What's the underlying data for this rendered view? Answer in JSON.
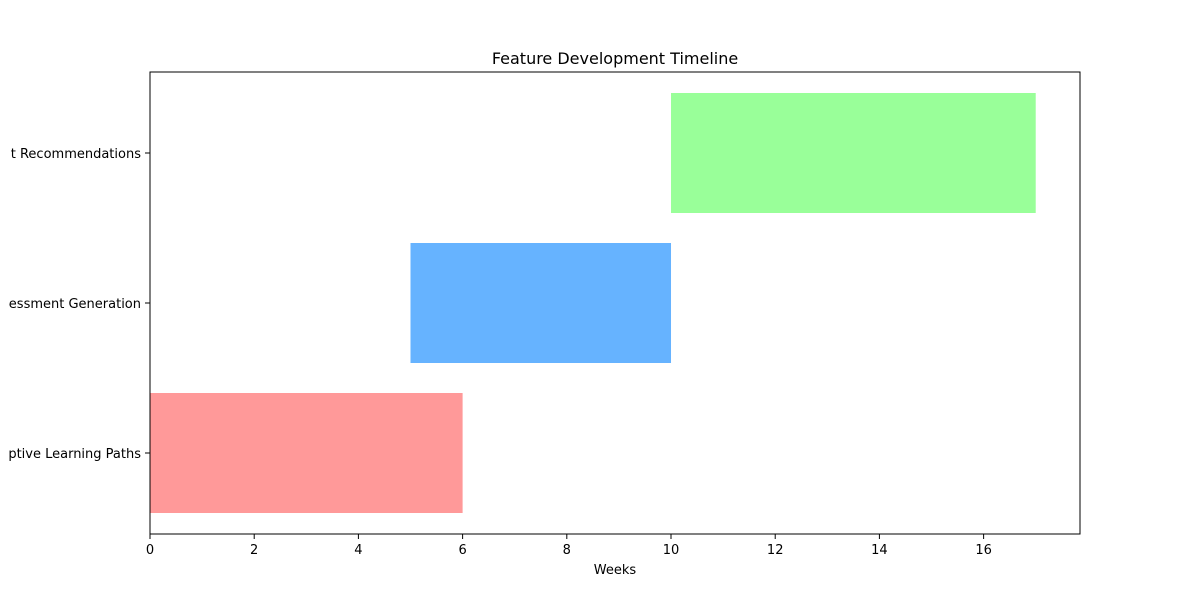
{
  "chart_data": {
    "type": "bar",
    "orientation": "horizontal",
    "title": "Feature Development Timeline",
    "xlabel": "Weeks",
    "ylabel": "",
    "xlim": [
      0,
      17.85
    ],
    "xticks": [
      0,
      2,
      4,
      6,
      8,
      10,
      12,
      14,
      16
    ],
    "grid": false,
    "categories": [
      "Adaptive Learning Paths",
      "Assessment Generation",
      "Content Recommendations"
    ],
    "category_labels_visible": [
      "ptive Learning Paths",
      "essment Generation",
      "t Recommendations"
    ],
    "bars": [
      {
        "category": "Adaptive Learning Paths",
        "start": 0,
        "end": 6,
        "color": "#ff9999"
      },
      {
        "category": "Assessment Generation",
        "start": 5,
        "end": 10,
        "color": "#66b3ff"
      },
      {
        "category": "Content Recommendations",
        "start": 10,
        "end": 17,
        "color": "#99ff99"
      }
    ]
  }
}
